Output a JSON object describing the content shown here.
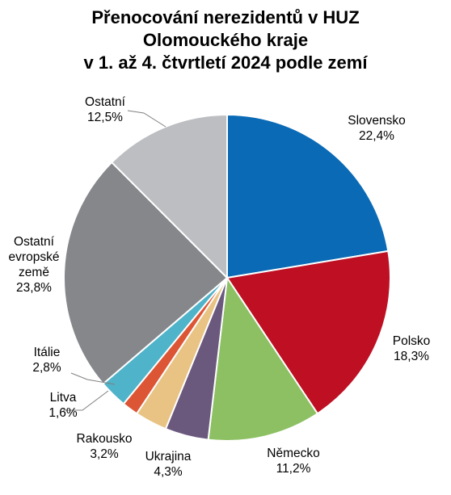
{
  "chart_data": {
    "type": "pie",
    "title_lines": [
      "Přenocování nerezidentů v HUZ",
      "Olomouckého kraje",
      "v 1. až 4. čtvrtletí 2024 podle zemí"
    ],
    "slices": [
      {
        "label": "Slovensko",
        "value": 22.4,
        "value_text": "22,4%",
        "color": "#0a6ab5"
      },
      {
        "label": "Polsko",
        "value": 18.3,
        "value_text": "18,3%",
        "color": "#be0f23"
      },
      {
        "label": "Německo",
        "value": 11.2,
        "value_text": "11,2%",
        "color": "#8cc063"
      },
      {
        "label": "Ukrajina",
        "value": 4.3,
        "value_text": "4,3%",
        "color": "#6a587d"
      },
      {
        "label": "Rakousko",
        "value": 3.2,
        "value_text": "3,2%",
        "color": "#e8c383"
      },
      {
        "label": "Litva",
        "value": 1.6,
        "value_text": "1,6%",
        "color": "#dc5535"
      },
      {
        "label": "Itálie",
        "value": 2.8,
        "value_text": "2,8%",
        "color": "#4fb3c9"
      },
      {
        "label": "Ostatní evropské země",
        "label_lines": [
          "Ostatní",
          "evropské",
          "země"
        ],
        "value": 23.8,
        "value_text": "23,8%",
        "color": "#85878b"
      },
      {
        "label": "Ostatní",
        "value": 12.5,
        "value_text": "12,5%",
        "color": "#bcbec1"
      }
    ],
    "start_angle": "12 o'clock",
    "direction": "clockwise"
  }
}
